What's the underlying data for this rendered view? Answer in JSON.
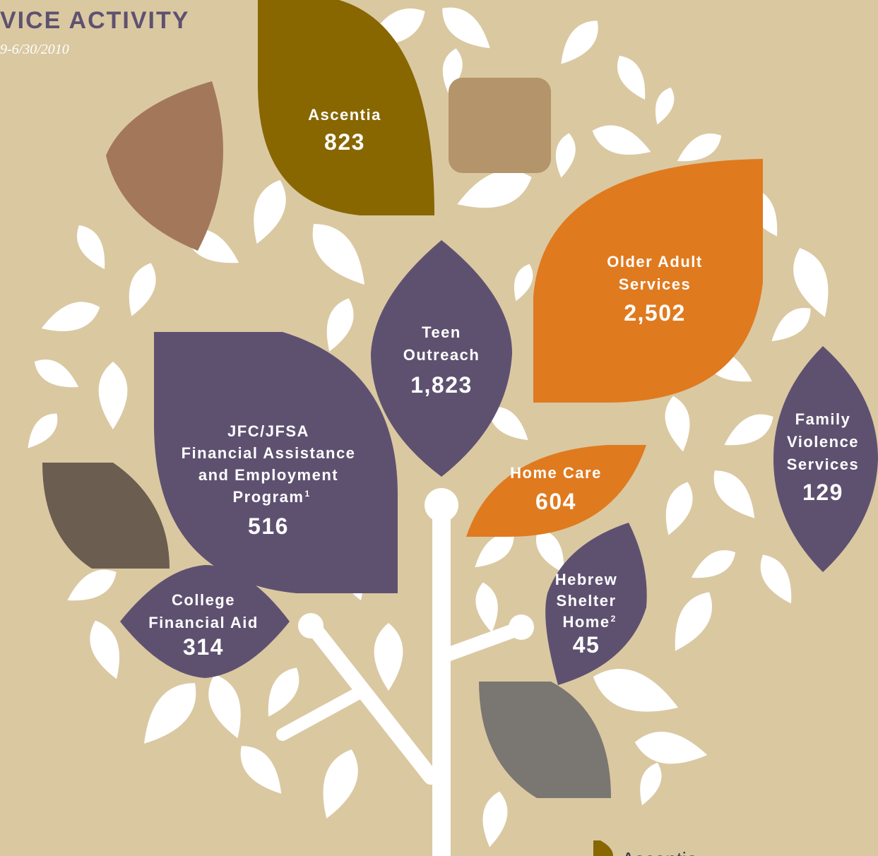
{
  "header": {
    "title": "VICE ACTIVITY",
    "subtitle": "9-6/30/2010"
  },
  "leaves": [
    {
      "label": [
        "Ascentia"
      ],
      "value": "823"
    },
    {
      "label": [
        "Older Adult",
        "Services"
      ],
      "value": "2,502"
    },
    {
      "label": [
        "Teen",
        "Outreach"
      ],
      "value": "1,823"
    },
    {
      "label": [
        "JFC/JFSA",
        "Financial Assistance",
        "and Employment",
        "Program"
      ],
      "note": "1",
      "value": "516"
    },
    {
      "label": [
        "Home Care"
      ],
      "value": "604"
    },
    {
      "label": [
        "Family",
        "Violence",
        "Services"
      ],
      "value": "129"
    },
    {
      "label": [
        "Hebrew",
        "Shelter",
        "Home"
      ],
      "note": "2",
      "value": "45"
    },
    {
      "label": [
        "College",
        "Financial Aid"
      ],
      "value": "314"
    }
  ],
  "legend": {
    "items": [
      "Ascentia"
    ]
  }
}
